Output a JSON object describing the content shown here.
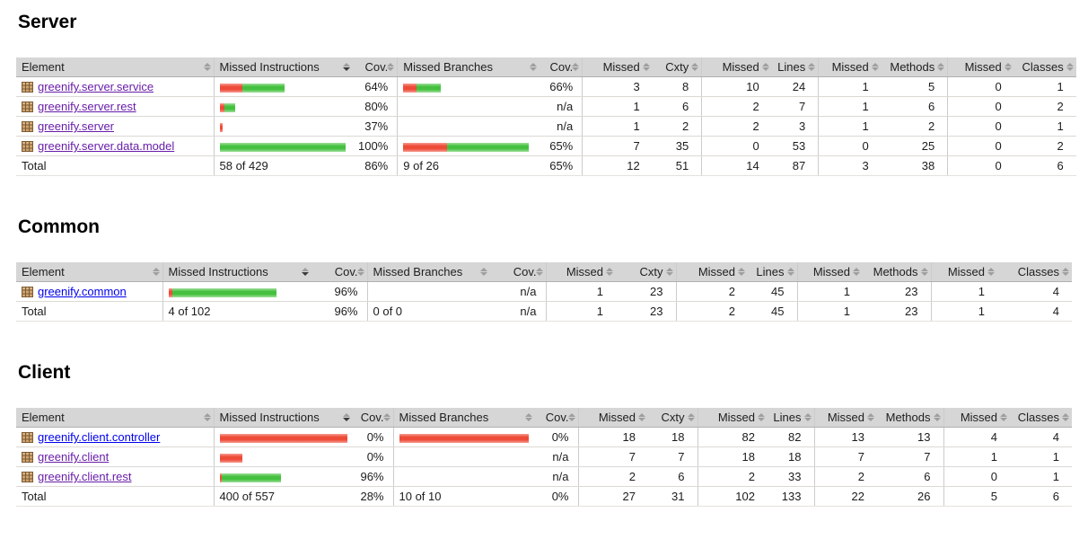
{
  "colors": {
    "bar_red": "#ed4b38",
    "bar_green": "#44c03f",
    "header_bg": "#d6d6d6",
    "link": "#0000ee",
    "link_visited": "#681da8"
  },
  "columns": [
    {
      "label": "Element"
    },
    {
      "label": "Missed Instructions",
      "sorted": "desc"
    },
    {
      "label": "Cov."
    },
    {
      "label": "Missed Branches"
    },
    {
      "label": "Cov."
    },
    {
      "label": "Missed"
    },
    {
      "label": "Cxty"
    },
    {
      "label": "Missed"
    },
    {
      "label": "Lines"
    },
    {
      "label": "Missed"
    },
    {
      "label": "Methods"
    },
    {
      "label": "Missed"
    },
    {
      "label": "Classes"
    }
  ],
  "sections": {
    "server": {
      "title": "Server",
      "rows": [
        {
          "name": "greenify.server.service",
          "visited": true,
          "ir": 25,
          "ig": 47,
          "ic": "64%",
          "br": 15,
          "bg": 27,
          "bc": "66%",
          "m1": "3",
          "v1": "8",
          "m2": "10",
          "v2": "24",
          "m3": "1",
          "v3": "5",
          "m4": "0",
          "v4": "1"
        },
        {
          "name": "greenify.server.rest",
          "visited": true,
          "ir": 5,
          "ig": 12,
          "ic": "80%",
          "br": 0,
          "bg": 0,
          "bc": "n/a",
          "m1": "1",
          "v1": "6",
          "m2": "2",
          "v2": "7",
          "m3": "1",
          "v3": "6",
          "m4": "0",
          "v4": "2"
        },
        {
          "name": "greenify.server",
          "visited": true,
          "ir": 3,
          "ig": 0,
          "ic": "37%",
          "br": 0,
          "bg": 0,
          "bc": "n/a",
          "m1": "1",
          "v1": "2",
          "m2": "2",
          "v2": "3",
          "m3": "1",
          "v3": "2",
          "m4": "0",
          "v4": "1"
        },
        {
          "name": "greenify.server.data.model",
          "visited": true,
          "ir": 0,
          "ig": 140,
          "ic": "100%",
          "br": 49,
          "bg": 91,
          "bc": "65%",
          "m1": "7",
          "v1": "35",
          "m2": "0",
          "v2": "53",
          "m3": "0",
          "v3": "25",
          "m4": "0",
          "v4": "2"
        }
      ],
      "total": {
        "label": "Total",
        "instr": "58 of 429",
        "ic": "86%",
        "branch": "9 of 26",
        "bc": "65%",
        "m1": "12",
        "v1": "51",
        "m2": "14",
        "v2": "87",
        "m3": "3",
        "v3": "38",
        "m4": "0",
        "v4": "6"
      }
    },
    "common": {
      "title": "Common",
      "rows": [
        {
          "name": "greenify.common",
          "visited": false,
          "ir": 4,
          "ig": 116,
          "ic": "96%",
          "br": 0,
          "bg": 0,
          "bc": "n/a",
          "m1": "1",
          "v1": "23",
          "m2": "2",
          "v2": "45",
          "m3": "1",
          "v3": "23",
          "m4": "1",
          "v4": "4"
        }
      ],
      "total": {
        "label": "Total",
        "instr": "4 of 102",
        "ic": "96%",
        "branch": "0 of 0",
        "bc": "n/a",
        "m1": "1",
        "v1": "23",
        "m2": "2",
        "v2": "45",
        "m3": "1",
        "v3": "23",
        "m4": "1",
        "v4": "4"
      }
    },
    "client": {
      "title": "Client",
      "rows": [
        {
          "name": "greenify.client.controller",
          "visited": false,
          "ir": 142,
          "ig": 0,
          "ic": "0%",
          "br": 144,
          "bg": 0,
          "bc": "0%",
          "m1": "18",
          "v1": "18",
          "m2": "82",
          "v2": "82",
          "m3": "13",
          "v3": "13",
          "m4": "4",
          "v4": "4"
        },
        {
          "name": "greenify.client",
          "visited": true,
          "ir": 25,
          "ig": 0,
          "ic": "0%",
          "br": 0,
          "bg": 0,
          "bc": "n/a",
          "m1": "7",
          "v1": "7",
          "m2": "18",
          "v2": "18",
          "m3": "7",
          "v3": "7",
          "m4": "1",
          "v4": "1"
        },
        {
          "name": "greenify.client.rest",
          "visited": true,
          "ir": 2,
          "ig": 66,
          "ic": "96%",
          "br": 0,
          "bg": 0,
          "bc": "n/a",
          "m1": "2",
          "v1": "6",
          "m2": "2",
          "v2": "33",
          "m3": "2",
          "v3": "6",
          "m4": "0",
          "v4": "1"
        }
      ],
      "total": {
        "label": "Total",
        "instr": "400 of 557",
        "ic": "28%",
        "branch": "10 of 10",
        "bc": "0%",
        "m1": "27",
        "v1": "31",
        "m2": "102",
        "v2": "133",
        "m3": "22",
        "v3": "26",
        "m4": "5",
        "v4": "6"
      }
    }
  }
}
